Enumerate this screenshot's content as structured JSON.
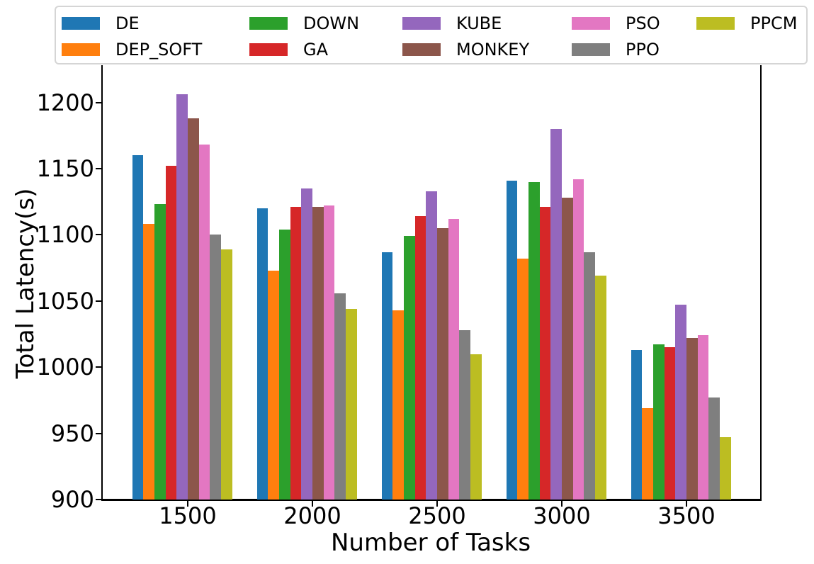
{
  "chart_data": {
    "type": "bar",
    "title": "",
    "xlabel": "Number of Tasks",
    "ylabel": "Total Latency(s)",
    "categories": [
      "1500",
      "2000",
      "2500",
      "3000",
      "3500"
    ],
    "series": [
      {
        "name": "DE",
        "color": "#1f77b4",
        "values": [
          1160,
          1120,
          1087,
          1141,
          1013
        ]
      },
      {
        "name": "DEP_SOFT",
        "color": "#ff7f0e",
        "values": [
          1108,
          1073,
          1043,
          1082,
          969
        ]
      },
      {
        "name": "DOWN",
        "color": "#2ca02c",
        "values": [
          1123,
          1104,
          1099,
          1140,
          1017
        ]
      },
      {
        "name": "GA",
        "color": "#d62728",
        "values": [
          1152,
          1121,
          1114,
          1121,
          1015
        ]
      },
      {
        "name": "KUBE",
        "color": "#9467bd",
        "values": [
          1206,
          1135,
          1133,
          1180,
          1047
        ]
      },
      {
        "name": "MONKEY",
        "color": "#8c564b",
        "values": [
          1188,
          1121,
          1105,
          1128,
          1022
        ]
      },
      {
        "name": "PSO",
        "color": "#e377c2",
        "values": [
          1168,
          1122,
          1112,
          1142,
          1024
        ]
      },
      {
        "name": "PPO",
        "color": "#7f7f7f",
        "values": [
          1100,
          1056,
          1028,
          1087,
          977
        ]
      },
      {
        "name": "PPCM",
        "color": "#bcbd22",
        "values": [
          1089,
          1044,
          1010,
          1069,
          947
        ]
      }
    ],
    "yticks": [
      900,
      950,
      1000,
      1050,
      1100,
      1150,
      1200
    ],
    "ylim": [
      900,
      1227
    ],
    "grid": false,
    "legend_position": "top, outside plot, 2 rows, column-major order"
  }
}
